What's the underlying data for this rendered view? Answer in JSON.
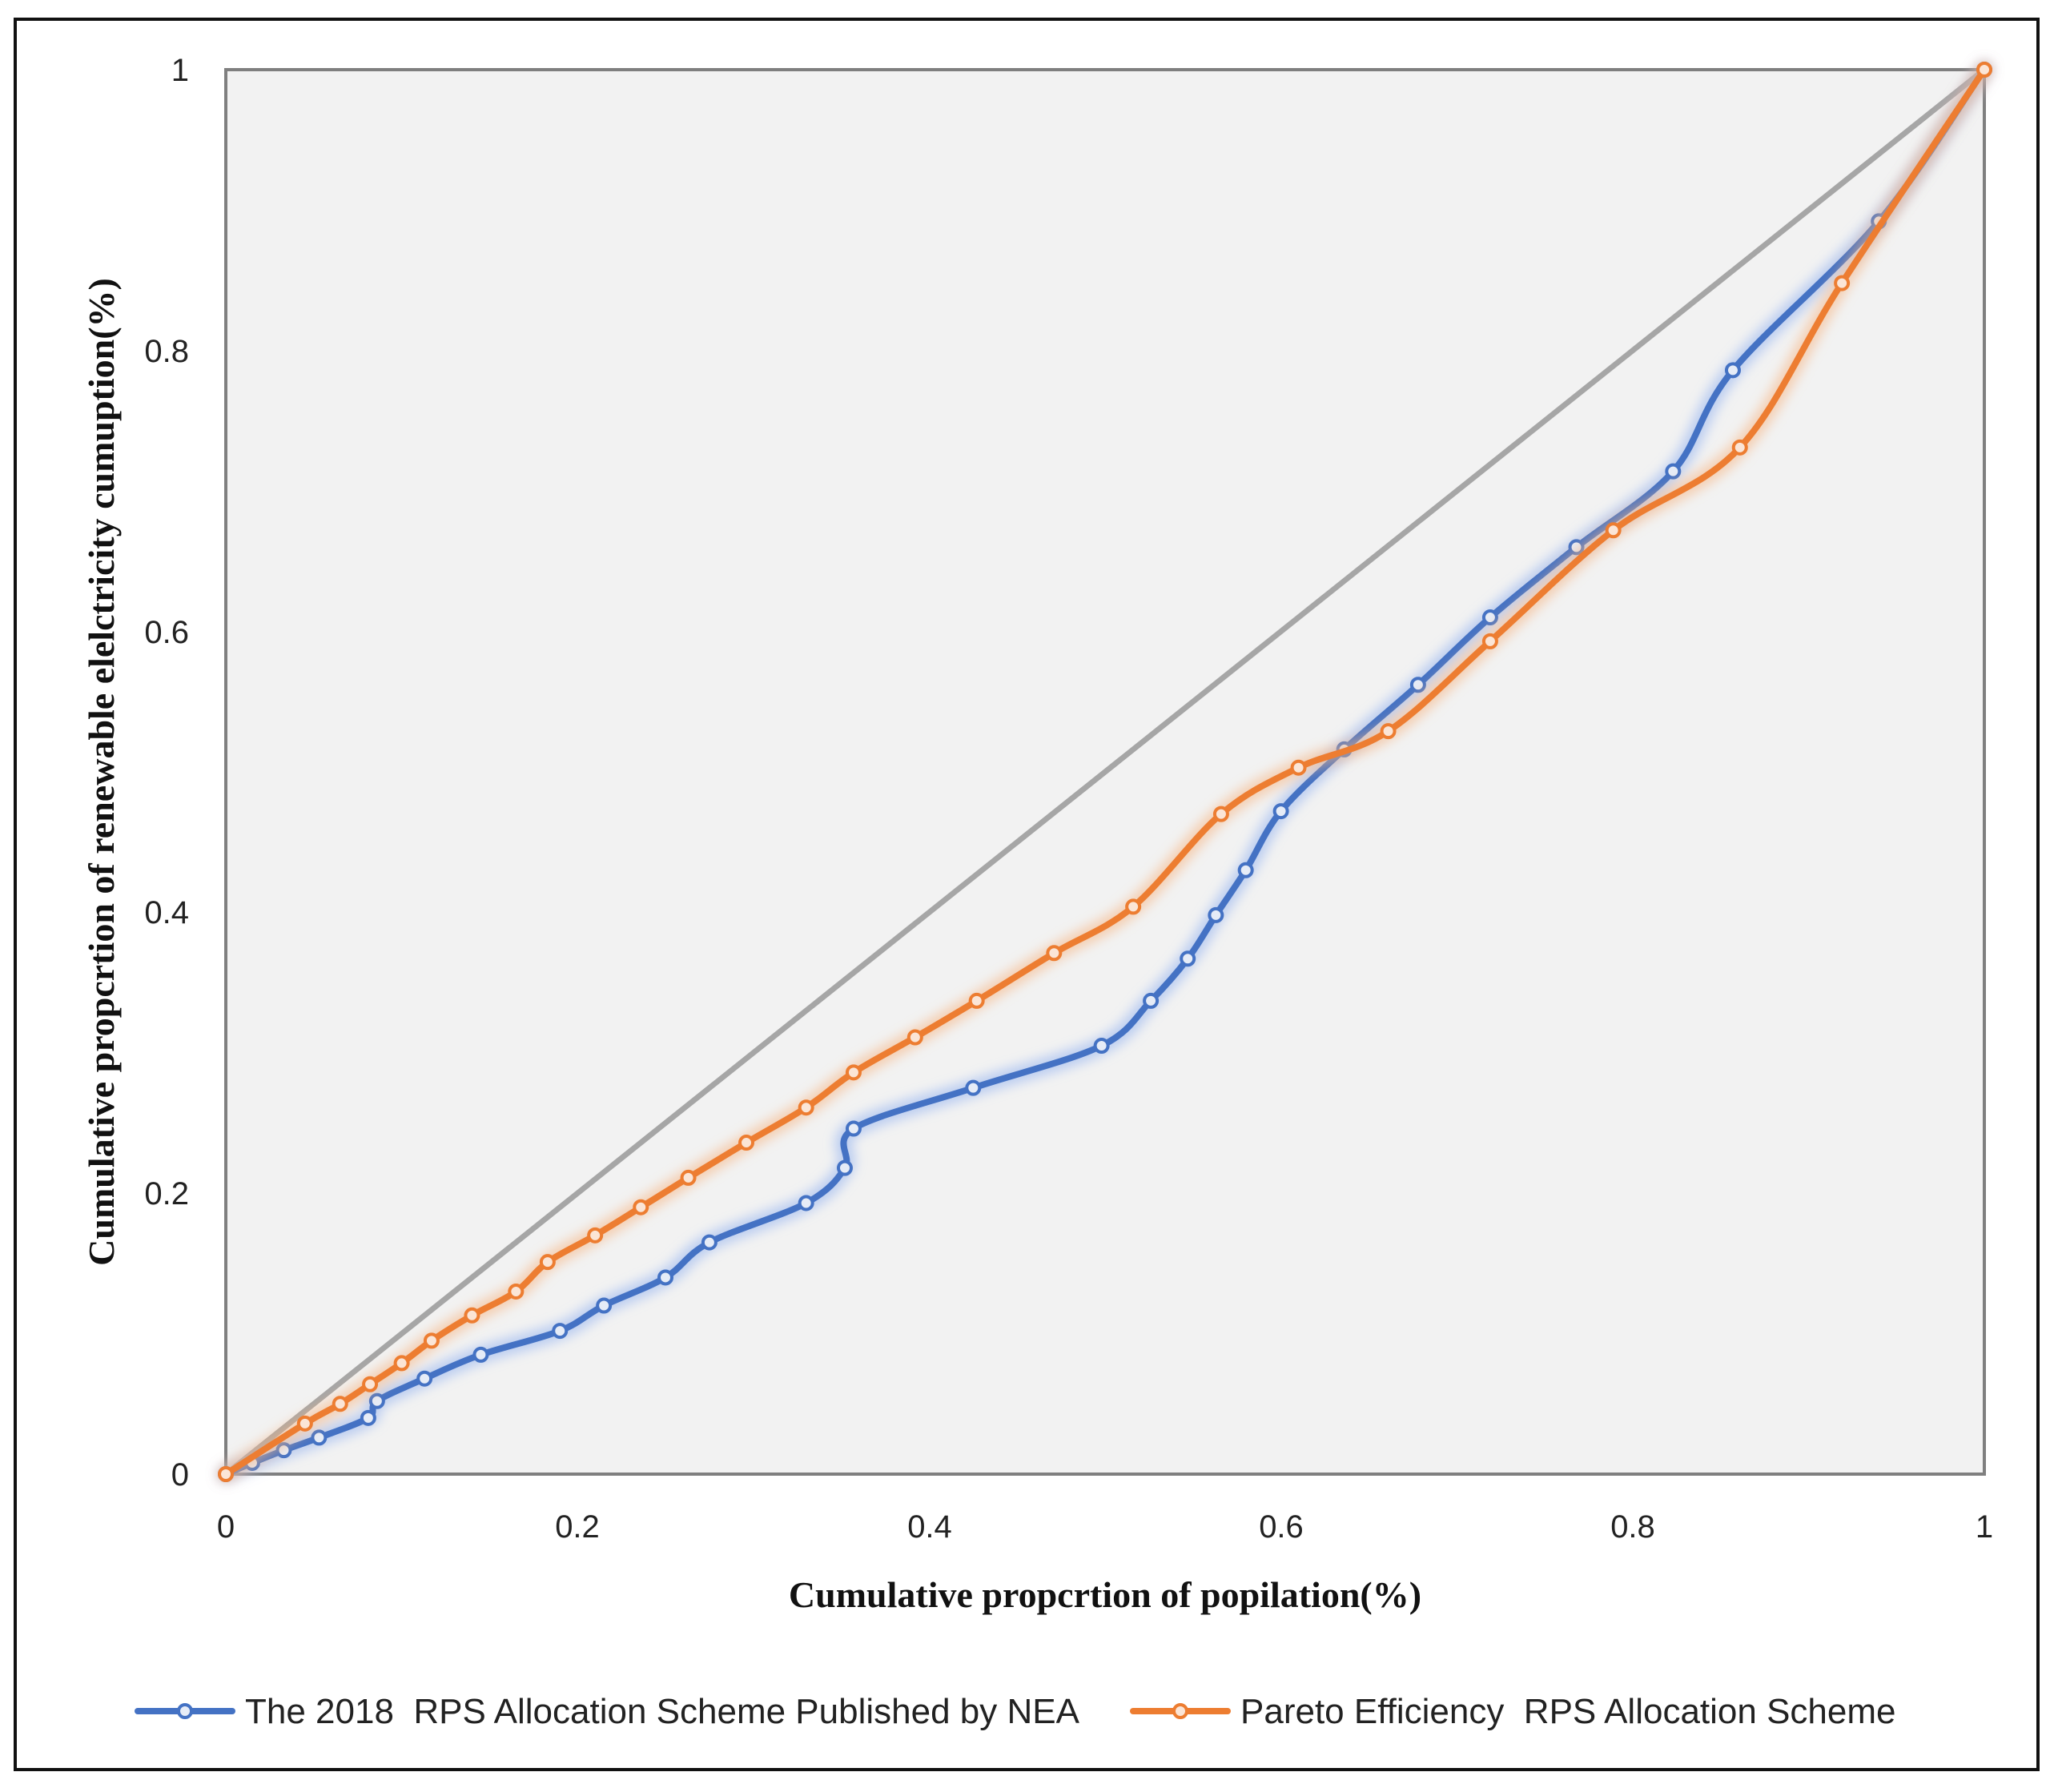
{
  "chart_data": {
    "type": "line",
    "title": "",
    "xlabel": "Cumulative propcrtion of popilation(%)",
    "ylabel": "Cumulative propcrtion of renewable elelctricity cumuption(%)",
    "xlim": [
      0,
      1
    ],
    "ylim": [
      0,
      1
    ],
    "xticks": [
      "0",
      "0.2",
      "0.4",
      "0.6",
      "0.8",
      "1"
    ],
    "yticks": [
      "0",
      "0.2",
      "0.4",
      "0.6",
      "0.8",
      "1"
    ],
    "grid": false,
    "legend_position": "bottom",
    "equality_line": {
      "name": "equality line",
      "color": "#a6a6a6",
      "x": [
        0,
        1
      ],
      "y": [
        0,
        1
      ]
    },
    "series": [
      {
        "name": "The 2018  RPS Allocation Scheme Published by NEA",
        "color": "#4472c4",
        "glow": "#8fb0f0",
        "x": [
          0,
          0.015,
          0.033,
          0.053,
          0.081,
          0.086,
          0.113,
          0.145,
          0.19,
          0.215,
          0.25,
          0.275,
          0.33,
          0.352,
          0.357,
          0.425,
          0.498,
          0.526,
          0.547,
          0.563,
          0.58,
          0.6,
          0.636,
          0.678,
          0.719,
          0.768,
          0.823,
          0.857,
          0.94,
          1.0
        ],
        "y": [
          0,
          0.008,
          0.017,
          0.026,
          0.04,
          0.052,
          0.068,
          0.085,
          0.102,
          0.12,
          0.14,
          0.165,
          0.193,
          0.218,
          0.246,
          0.275,
          0.305,
          0.337,
          0.367,
          0.398,
          0.43,
          0.472,
          0.516,
          0.562,
          0.61,
          0.66,
          0.714,
          0.786,
          0.892,
          1.0
        ]
      },
      {
        "name": "Pareto Efficiency  RPS Allocation Scheme",
        "color": "#ed7d31",
        "glow": "#f5b27f",
        "x": [
          0,
          0.045,
          0.065,
          0.082,
          0.1,
          0.117,
          0.14,
          0.165,
          0.183,
          0.21,
          0.236,
          0.263,
          0.296,
          0.33,
          0.357,
          0.392,
          0.427,
          0.471,
          0.516,
          0.566,
          0.61,
          0.661,
          0.719,
          0.789,
          0.861,
          0.919,
          1.0
        ],
        "y": [
          0,
          0.036,
          0.05,
          0.064,
          0.079,
          0.095,
          0.113,
          0.13,
          0.151,
          0.17,
          0.19,
          0.211,
          0.236,
          0.261,
          0.286,
          0.311,
          0.337,
          0.371,
          0.404,
          0.47,
          0.503,
          0.529,
          0.593,
          0.672,
          0.731,
          0.848,
          1.0
        ]
      }
    ]
  }
}
